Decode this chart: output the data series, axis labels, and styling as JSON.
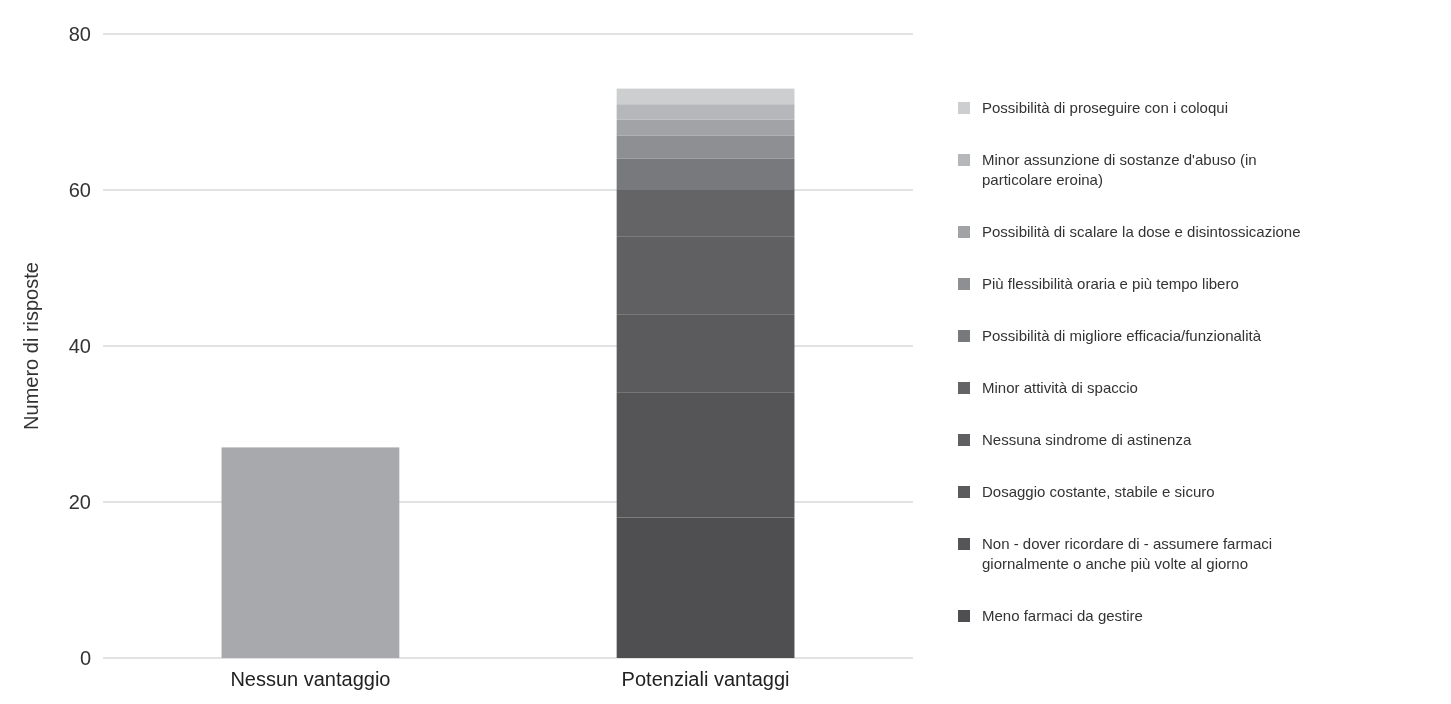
{
  "chart_data": {
    "type": "bar",
    "stacked": true,
    "ylabel": "Numero di risposte",
    "categories": [
      "Nessun vantaggio",
      "Potenziali vantaggi"
    ],
    "ylim": [
      0,
      80
    ],
    "yticks": [
      0,
      20,
      40,
      60,
      80
    ],
    "grid": "y",
    "legend": "right",
    "series": [
      {
        "color": "#a8a9ac",
        "values": [
          27,
          null
        ]
      },
      {
        "name": "Meno farmaci da gestire",
        "color": "#4f4f51",
        "values": [
          null,
          18
        ]
      },
      {
        "name": "Non - dover ricordare di - assumere farmaci giornalmente o anche più volte al giorno",
        "color": "#555557",
        "values": [
          null,
          16
        ]
      },
      {
        "name": "Dosaggio costante, stabile e sicuro",
        "color": "#5b5b5d",
        "values": [
          null,
          10
        ]
      },
      {
        "name": "Nessuna sindrome di astinenza",
        "color": "#606062",
        "values": [
          null,
          10
        ]
      },
      {
        "name": "Minor attività di spaccio",
        "color": "#646466",
        "values": [
          null,
          6
        ]
      },
      {
        "name": "Possibilità di migliore efficacia/funzionalità",
        "color": "#78797c",
        "values": [
          null,
          4
        ]
      },
      {
        "name": "Più flessibilità oraria e più tempo libero",
        "color": "#8e8f92",
        "values": [
          null,
          3
        ]
      },
      {
        "name": "Possibilità di scalare la dose e disintossicazione",
        "color": "#a2a3a6",
        "values": [
          null,
          2
        ]
      },
      {
        "name": "Minor assunzione di sostanze d'abuso (in particolare eroina)",
        "color": "#b6b7ba",
        "values": [
          null,
          2
        ]
      },
      {
        "name": "Possibilità di proseguire con i coloqui",
        "color": "#cdced0",
        "values": [
          null,
          2
        ]
      }
    ]
  }
}
